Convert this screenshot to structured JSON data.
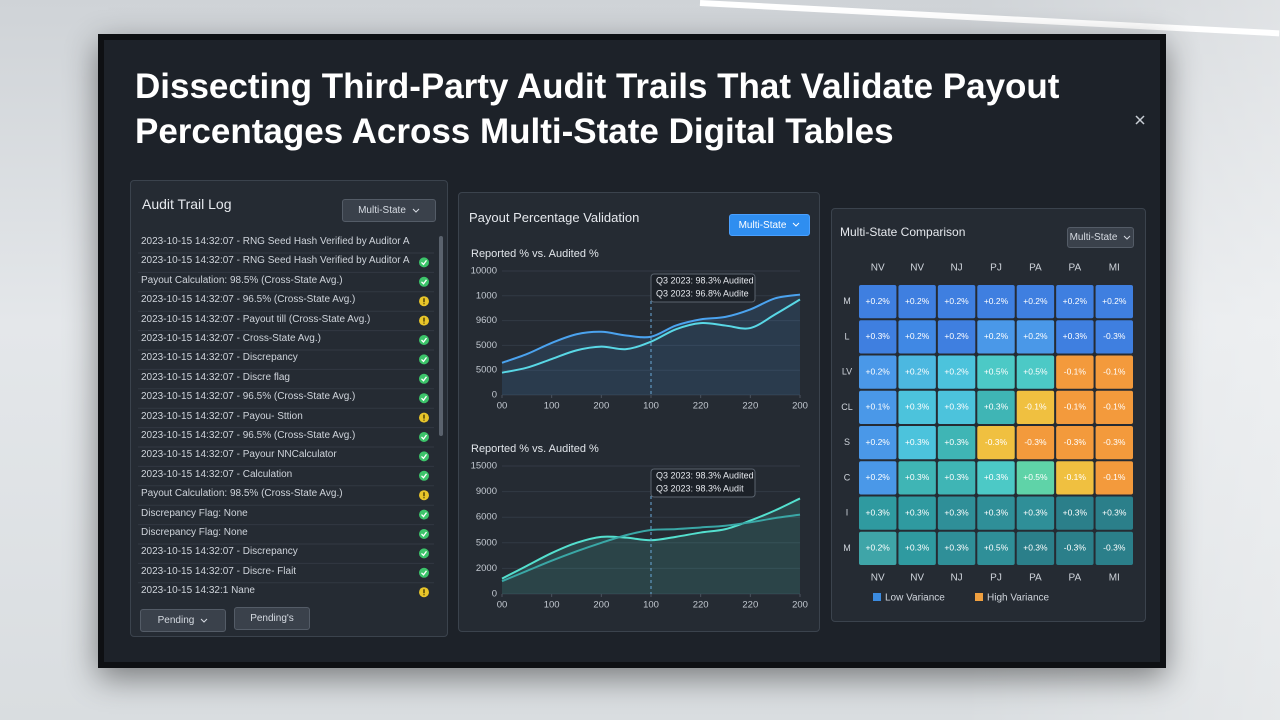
{
  "title": "Dissecting Third-Party Audit Trails That Validate Payout Percentages Across Multi-State Digital Tables",
  "audit_log": {
    "title": "Audit Trail Log",
    "filter": "Multi-State",
    "entries": [
      {
        "text": "2023-10-15 14:32:07 - RNG Seed Hash Verified by Auditor A"
      },
      {
        "text": "2023-10-15 14:32:07 - RNG Seed Hash Verified by Auditor A",
        "status": "ok"
      },
      {
        "text": "Payout Calculation: 98.5% (Cross-State Avg.)",
        "status": "ok"
      },
      {
        "text": "2023-10-15 14:32:07 - 96.5% (Cross-State Avg.)",
        "status": "warn"
      },
      {
        "text": "2023-10-15 14:32:07 - Payout till (Cross-State Avg.)",
        "status": "warn"
      },
      {
        "text": "2023-10-15 14:32:07 - Cross-State Avg.)",
        "status": "ok"
      },
      {
        "text": "2023-10-15 14:32:07 - Discrepancy",
        "status": "ok"
      },
      {
        "text": "2023-10-15 14:32:07 - Discre flag",
        "status": "ok"
      },
      {
        "text": "2023-10-15 14:32:07 - 96.5% (Cross-State Avg.)",
        "status": "ok"
      },
      {
        "text": "2023-10-15 14:32:07 - Payou- Sttion",
        "status": "warn"
      },
      {
        "text": "2023-10-15 14:32:07 - 96.5% (Cross-State Avg.)",
        "status": "ok"
      },
      {
        "text": "2023-10-15 14:32:07 - Payour NNCalculator",
        "status": "ok"
      },
      {
        "text": "2023-10-15 14:32:07 - Calculation",
        "status": "ok"
      },
      {
        "text": "Payout Calculation: 98.5% (Cross-State Avg.)",
        "status": "warn"
      },
      {
        "text": "Discrepancy Flag: None",
        "status": "ok"
      },
      {
        "text": "Discrepancy Flag: None",
        "status": "ok"
      },
      {
        "text": "2023-10-15 14:32:07 - Discrepancy",
        "status": "ok"
      },
      {
        "text": "2023-10-15 14:32:07 - Discre- Flait",
        "status": "ok"
      },
      {
        "text": "2023-10-15 14:32:1 Nane",
        "status": "warn"
      }
    ],
    "buttons": [
      "Pending",
      "Pending's"
    ]
  },
  "payout_panel": {
    "title": "Payout Percentage Validation",
    "filter": "Multi-State"
  },
  "comparison_panel": {
    "title": "Multi-State Comparison",
    "filter": "Multi-State"
  },
  "chart_data": [
    {
      "type": "line",
      "title": "Reported % vs. Audited %",
      "x": [
        0,
        0.5,
        1,
        1.5,
        2,
        2.5,
        3,
        3.5,
        4,
        4.5,
        5,
        5.5,
        6
      ],
      "xlim": [
        0,
        6
      ],
      "xticks": [
        {
          "value": 0,
          "label": "00"
        },
        {
          "value": 1,
          "label": "100"
        },
        {
          "value": 2,
          "label": "200"
        },
        {
          "value": 3,
          "label": "100"
        },
        {
          "value": 4,
          "label": "220"
        },
        {
          "value": 5,
          "label": "220"
        },
        {
          "value": 6,
          "label": "200"
        }
      ],
      "ylim": [
        0,
        10000
      ],
      "yticks": [
        0,
        {
          "value": 2000,
          "label": "5000"
        },
        {
          "value": 4000,
          "label": "5000"
        },
        {
          "value": 6000,
          "label": "9600"
        },
        {
          "value": 8000,
          "label": "1000"
        },
        10000
      ],
      "series": [
        {
          "color": "#4ba3ef",
          "values": [
            2600,
            3300,
            4200,
            4900,
            5100,
            4800,
            4700,
            5600,
            6100,
            6300,
            6900,
            7800,
            8100
          ]
        },
        {
          "color": "#59d8e6",
          "values": [
            1800,
            2200,
            2900,
            3600,
            3900,
            3700,
            4300,
            5300,
            5800,
            5600,
            5400,
            6500,
            7700
          ]
        }
      ],
      "annotations": [
        "Q3 2023: 98.3% Audited",
        "Q3 2023: 96.8% Audite"
      ]
    },
    {
      "type": "line",
      "title": "Reported % vs. Audited %",
      "x": [
        0,
        0.5,
        1,
        1.5,
        2,
        2.5,
        3,
        3.5,
        4,
        4.5,
        5,
        5.5,
        6
      ],
      "xlim": [
        0,
        6
      ],
      "xticks": [
        {
          "value": 0,
          "label": "00"
        },
        {
          "value": 1,
          "label": "100"
        },
        {
          "value": 2,
          "label": "200"
        },
        {
          "value": 3,
          "label": "100"
        },
        {
          "value": 4,
          "label": "220"
        },
        {
          "value": 5,
          "label": "220"
        },
        {
          "value": 6,
          "label": "200"
        }
      ],
      "ylim": [
        0,
        15000
      ],
      "yticks": [
        0,
        {
          "value": 3000,
          "label": "2000"
        },
        {
          "value": 6000,
          "label": "5000"
        },
        {
          "value": 9000,
          "label": "6000"
        },
        {
          "value": 12000,
          "label": "9000"
        },
        15000
      ],
      "series": [
        {
          "color": "#54e0cf",
          "values": [
            1800,
            3300,
            4800,
            6000,
            6700,
            6600,
            6300,
            6700,
            7200,
            7600,
            8600,
            9800,
            11200
          ]
        },
        {
          "color": "#3aa7a6",
          "values": [
            1500,
            2700,
            3900,
            5000,
            6000,
            6900,
            7500,
            7600,
            7800,
            8000,
            8400,
            8900,
            9300
          ]
        }
      ],
      "annotations": [
        "Q3 2023: 98.3% Audited",
        "Q3 2023: 98.3% Audit"
      ]
    },
    {
      "type": "heatmap",
      "x": [
        "NV",
        "NV",
        "NJ",
        "PJ",
        "PA",
        "PA",
        "MI"
      ],
      "y": [
        "M",
        "L",
        "LV",
        "CL",
        "S",
        "C",
        "I",
        "M"
      ],
      "values": [
        [
          0.2,
          0.2,
          0.2,
          0.2,
          0.2,
          0.2,
          0.2
        ],
        [
          0.3,
          0.2,
          0.2,
          0.2,
          0.2,
          0.3,
          -0.3
        ],
        [
          0.2,
          0.2,
          0.2,
          0.5,
          0.5,
          -0.1,
          -0.1
        ],
        [
          0.1,
          0.3,
          0.3,
          0.3,
          -0.1,
          -0.1,
          -0.1
        ],
        [
          0.2,
          0.3,
          0.3,
          -0.3,
          -0.3,
          -0.3,
          -0.3
        ],
        [
          0.2,
          0.3,
          0.3,
          0.3,
          0.5,
          -0.1,
          -0.1
        ],
        [
          0.3,
          0.3,
          0.3,
          0.3,
          0.3,
          0.3,
          0.3
        ],
        [
          0.2,
          0.3,
          0.3,
          0.5,
          0.3,
          -0.3,
          -0.3
        ]
      ],
      "value_labels": [
        [
          "+0.2%",
          "+0.2%",
          "+0.2%",
          "+0.2%",
          "+0.2%",
          "+0.2%",
          "+0.2%"
        ],
        [
          "+0.3%",
          "+0.2%",
          "+0.2%",
          "+0.2%",
          "+0.2%",
          "+0.3%",
          "-0.3%"
        ],
        [
          "+0.2%",
          "+0.2%",
          "+0.2%",
          "+0.5%",
          "+0.5%",
          "-0.1%",
          "-0.1%"
        ],
        [
          "+0.1%",
          "+0.3%",
          "+0.3%",
          "+0.3%",
          "-0.1%",
          "-0.1%",
          "-0.1%"
        ],
        [
          "+0.2%",
          "+0.3%",
          "+0.3%",
          "-0.3%",
          "-0.3%",
          "-0.3%",
          "-0.3%"
        ],
        [
          "+0.2%",
          "+0.3%",
          "+0.3%",
          "+0.3%",
          "+0.5%",
          "-0.1%",
          "-0.1%"
        ],
        [
          "+0.3%",
          "+0.3%",
          "+0.3%",
          "+0.3%",
          "+0.3%",
          "+0.3%",
          "+0.3%"
        ],
        [
          "+0.2%",
          "+0.3%",
          "+0.3%",
          "+0.5%",
          "+0.3%",
          "-0.3%",
          "-0.3%"
        ]
      ],
      "colors": [
        [
          "#3f7fe0",
          "#3f7fe0",
          "#3f7fe0",
          "#3f7fe0",
          "#3f7fe0",
          "#3f7fe0",
          "#3f7fe0"
        ],
        [
          "#3f7fe0",
          "#4088e4",
          "#3f7fe0",
          "#4a98e8",
          "#4a98e8",
          "#3f7fe0",
          "#3f7fe0"
        ],
        [
          "#4a98e8",
          "#4cb8e0",
          "#4cc3dc",
          "#4cc9c6",
          "#4cc9c6",
          "#f39a3c",
          "#f39a3c"
        ],
        [
          "#4a98e8",
          "#4cc3dc",
          "#4cc3dc",
          "#3fb5b5",
          "#f0c040",
          "#f39a3c",
          "#f39a3c"
        ],
        [
          "#4a98e8",
          "#4cc3dc",
          "#3fb5b5",
          "#f0c040",
          "#f39a3c",
          "#f39a3c",
          "#f39a3c"
        ],
        [
          "#4a98e8",
          "#3fb5b5",
          "#3fb5b5",
          "#4cc9c6",
          "#5fd3a8",
          "#f0c040",
          "#f39a3c"
        ],
        [
          "#2f9aa0",
          "#2f9aa0",
          "#2f8f98",
          "#2f8f98",
          "#2f8f98",
          "#2b7f8a",
          "#2b7f8a"
        ],
        [
          "#3fa5a8",
          "#2f9aa0",
          "#2f8f98",
          "#2f8f98",
          "#2b7f8a",
          "#2b7f8a",
          "#2b7f8a"
        ]
      ],
      "legend": [
        {
          "name": "Low Variance",
          "color": "#3b8be0"
        },
        {
          "name": "High Variance",
          "color": "#f0a040"
        }
      ]
    }
  ]
}
